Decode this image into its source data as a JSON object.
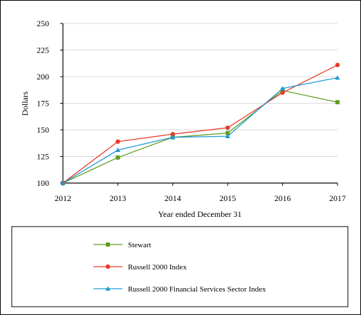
{
  "chart_data": {
    "type": "line",
    "title": "",
    "xlabel": "Year ended December 31",
    "ylabel": "Dollars",
    "x": [
      2012,
      2013,
      2014,
      2015,
      2016,
      2017
    ],
    "ylim": [
      100,
      250
    ],
    "yticks": [
      100,
      125,
      150,
      175,
      200,
      225,
      250
    ],
    "grid": true,
    "legend_position": "bottom",
    "series": [
      {
        "name": "Stewart",
        "color": "#5e9e1e",
        "marker": "square",
        "values": [
          100,
          124,
          143,
          147,
          187,
          176
        ]
      },
      {
        "name": "Russell 2000 Index",
        "color": "#e8392a",
        "marker": "circle",
        "values": [
          100,
          139,
          146,
          152,
          185,
          211
        ]
      },
      {
        "name": "Russell 2000 Financial Services Sector Index",
        "color": "#1f9ad6",
        "marker": "triangle",
        "values": [
          100,
          131,
          143,
          144,
          189,
          199
        ]
      }
    ]
  }
}
